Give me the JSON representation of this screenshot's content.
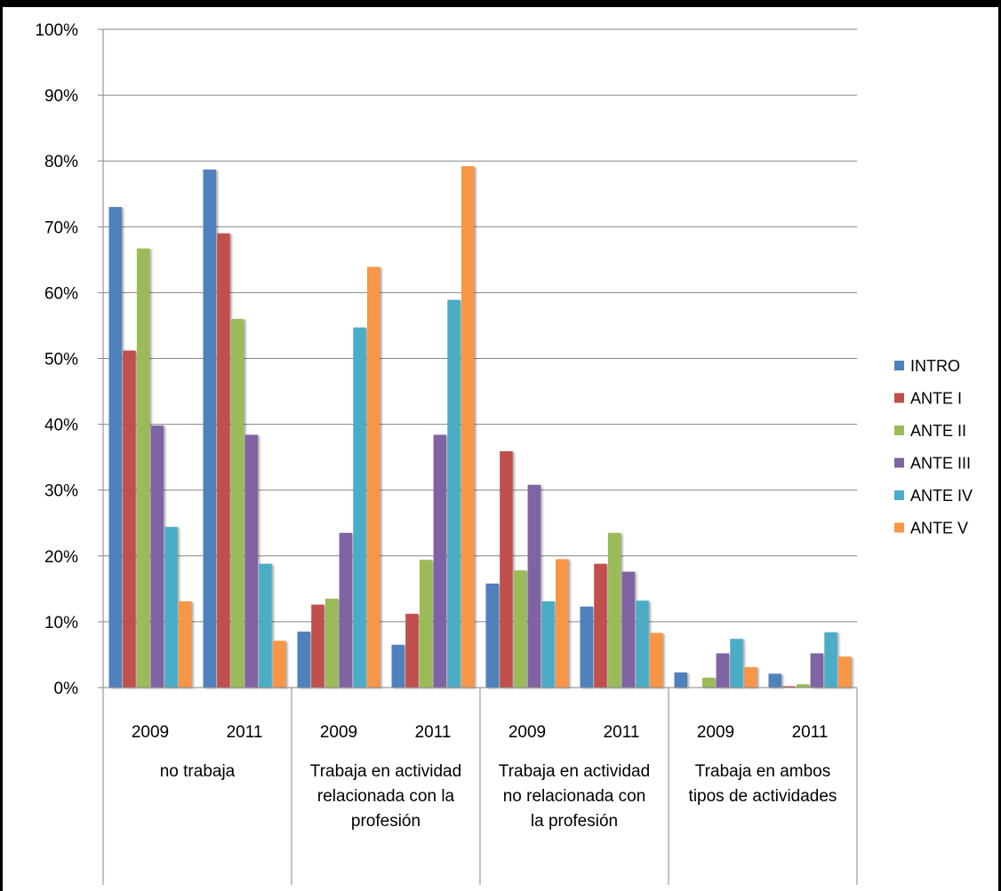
{
  "chart_data": {
    "type": "bar",
    "groups": [
      {
        "label_lines": [
          "no trabaja"
        ],
        "years": [
          "2009",
          "2011"
        ]
      },
      {
        "label_lines": [
          "Trabaja en actividad",
          "relacionada con la",
          "profesión"
        ],
        "years": [
          "2009",
          "2011"
        ]
      },
      {
        "label_lines": [
          "Trabaja en actividad",
          "no relacionada con",
          "la profesión"
        ],
        "years": [
          "2009",
          "2011"
        ]
      },
      {
        "label_lines": [
          "Trabaja en ambos",
          "tipos de actividades"
        ],
        "years": [
          "2009",
          "2011"
        ]
      }
    ],
    "series": [
      {
        "name": "INTRO",
        "color": "#4F81BD",
        "values": [
          73,
          78.7,
          8.5,
          6.5,
          15.8,
          12.3,
          2.3,
          2.1
        ]
      },
      {
        "name": "ANTE I",
        "color": "#C0504D",
        "values": [
          51.2,
          69,
          12.6,
          11.2,
          35.9,
          18.8,
          0,
          0.2
        ]
      },
      {
        "name": "ANTE II",
        "color": "#9BBB59",
        "values": [
          66.7,
          56,
          13.5,
          19.4,
          17.8,
          23.5,
          1.5,
          0.5
        ]
      },
      {
        "name": "ANTE III",
        "color": "#8064A2",
        "values": [
          39.8,
          38.4,
          23.5,
          38.4,
          30.8,
          17.6,
          5.2,
          5.2
        ]
      },
      {
        "name": "ANTE IV",
        "color": "#4BACC6",
        "values": [
          24.4,
          18.8,
          54.7,
          58.9,
          13.1,
          13.2,
          7.4,
          8.4
        ]
      },
      {
        "name": "ANTE V",
        "color": "#F79646",
        "values": [
          13.1,
          7.1,
          63.9,
          79.2,
          19.5,
          8.3,
          3.1,
          4.7
        ]
      }
    ],
    "y_ticks": [
      "0%",
      "10%",
      "20%",
      "30%",
      "40%",
      "50%",
      "60%",
      "70%",
      "80%",
      "90%",
      "100%"
    ],
    "ylim": [
      0,
      100
    ],
    "grid": true,
    "legend_position": "right"
  }
}
